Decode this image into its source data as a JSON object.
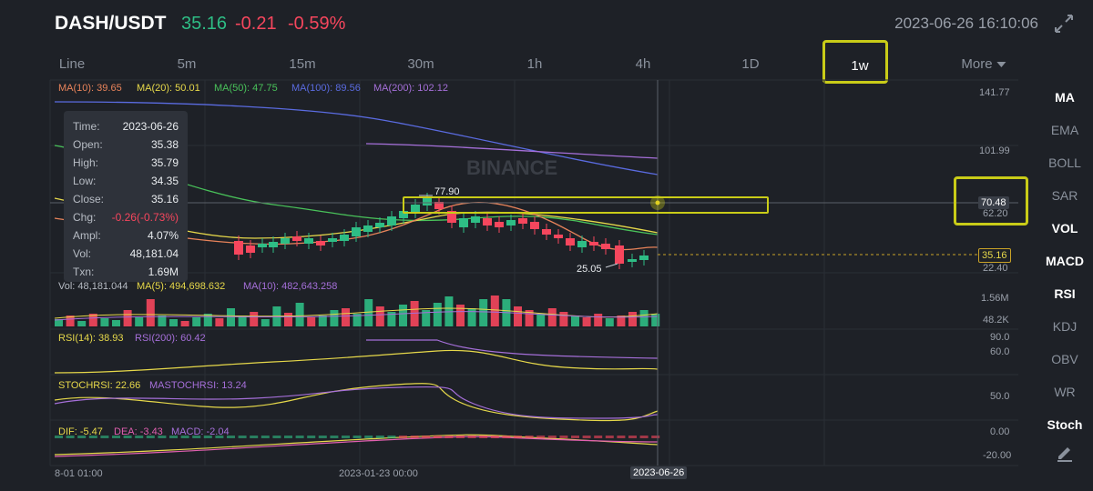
{
  "header": {
    "pair": "DASH/USDT",
    "price": "35.16",
    "change": "-0.21",
    "change_pct": "-0.59%",
    "timestamp": "2023-06-26 16:10:06"
  },
  "tabs": [
    "Line",
    "5m",
    "15m",
    "30m",
    "1h",
    "4h",
    "1D",
    "1w",
    "More"
  ],
  "active_tab": "1w",
  "ma_legend": {
    "ma10": "MA(10): 39.65",
    "ma20": "MA(20): 50.01",
    "ma50": "MA(50): 47.75",
    "ma100": "MA(100): 89.56",
    "ma200": "MA(200): 102.12"
  },
  "tooltip": [
    {
      "k": "Time:",
      "v": "2023-06-26"
    },
    {
      "k": "Open:",
      "v": "35.38"
    },
    {
      "k": "High:",
      "v": "35.79"
    },
    {
      "k": "Low:",
      "v": "34.35"
    },
    {
      "k": "Close:",
      "v": "35.16"
    },
    {
      "k": "Chg:",
      "v": "-0.26(-0.73%)"
    },
    {
      "k": "Ampl:",
      "v": "4.07%"
    },
    {
      "k": "Vol:",
      "v": "48,181.04"
    },
    {
      "k": "Txn:",
      "v": "1.69M"
    }
  ],
  "watermark": "BINANCE",
  "price_axis": {
    "top": "141.77",
    "mid": "101.99",
    "cross": "70.48",
    "below_cross": "62.20",
    "current": "35.16",
    "bottom": "22.40"
  },
  "annotations": {
    "high": "77.90",
    "low": "25.05"
  },
  "vol_legend": {
    "vol": "Vol: 48,181.044",
    "ma5": "MA(5): 494,698.632",
    "ma10": "MA(10): 482,643.258"
  },
  "vol_axis": {
    "top": "1.56M",
    "bottom": "48.2K"
  },
  "rsi_legend": {
    "rsi14": "RSI(14): 38.93",
    "rsi200": "RSI(200): 60.42"
  },
  "rsi_axis": {
    "a": "90.0",
    "b": "60.0"
  },
  "stoch_legend": {
    "k": "STOCHRSI: 22.66",
    "d": "MASTOCHRSI: 13.24"
  },
  "stoch_axis": {
    "a": "50.0"
  },
  "macd_legend": {
    "dif": "DIF: -5.47",
    "dea": "DEA: -3.43",
    "macd": "MACD: -2.04"
  },
  "macd_axis": {
    "a": "0.00",
    "b": "-20.00"
  },
  "time_axis": {
    "left": "8-01 01:00",
    "mid": "2023-01-23 00:00",
    "cursor": "2023-06-26"
  },
  "indicators": [
    {
      "label": "MA",
      "on": true
    },
    {
      "label": "EMA",
      "on": false
    },
    {
      "label": "BOLL",
      "on": false
    },
    {
      "label": "SAR",
      "on": false
    },
    {
      "label": "VOL",
      "on": true
    },
    {
      "label": "MACD",
      "on": true
    },
    {
      "label": "RSI",
      "on": true
    },
    {
      "label": "KDJ",
      "on": false
    },
    {
      "label": "OBV",
      "on": false
    },
    {
      "label": "WR",
      "on": false
    },
    {
      "label": "Stoch",
      "on": true
    }
  ],
  "colors": {
    "up": "#2ebd85",
    "down": "#f6465d",
    "highlight": "#c9cc18",
    "ma10": "#e8835a",
    "ma20": "#e6d84a",
    "ma50": "#49c25a",
    "ma100": "#5a6be0",
    "ma200": "#a56fd9"
  }
}
